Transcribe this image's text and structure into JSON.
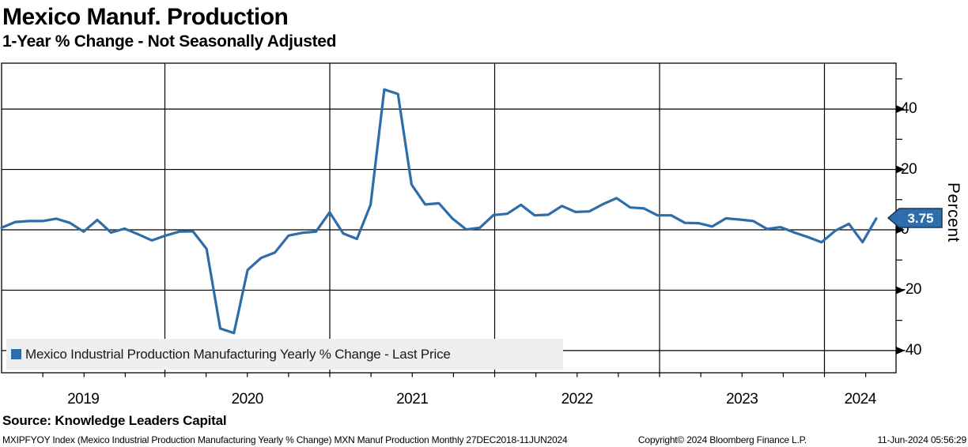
{
  "header": {
    "title": "Mexico Manuf. Production",
    "subtitle": "1-Year % Change - Not Seasonally Adjusted"
  },
  "legend": {
    "label": "Mexico Industrial Production Manufacturing Yearly % Change - Last Price"
  },
  "y_axis": {
    "label": "Percent",
    "tick_labels": [
      "40",
      "20",
      "0",
      "-20",
      "-40"
    ],
    "tick_values": [
      40,
      20,
      0,
      -20,
      -40
    ],
    "minor_tick_values": [
      50,
      30,
      10,
      -10,
      -30
    ],
    "last_price_label": "3.75",
    "last_price_value": 3.75
  },
  "x_axis": {
    "year_labels": [
      "2019",
      "2020",
      "2021",
      "2022",
      "2023",
      "2024"
    ]
  },
  "source_line": "Source: Knowledge Leaders Capital",
  "footer": {
    "left": "MXIPFYOY Index (Mexico Industrial Production Manufacturing Yearly % Change) MXN Manuf Production  Monthly 27DEC2018-11JUN2024",
    "copyright": "Copyright© 2024 Bloomberg Finance L.P.",
    "timestamp": "11-Jun-2024 05:56:29"
  },
  "colors": {
    "line": "#2E6DA9",
    "badge_fill": "#2E6DA9",
    "badge_border": "#16375C",
    "legend_bg": "#EFEFEF",
    "grid": "#000000"
  },
  "chart_data": {
    "type": "line",
    "title": "Mexico Manuf. Production",
    "subtitle": "1-Year % Change - Not Seasonally Adjusted",
    "ylabel": "Percent",
    "ylim": [
      -47,
      55
    ],
    "grid": true,
    "legend_position": "bottom-left",
    "frequency": "Monthly",
    "x_range": "27DEC2018-11JUN2024",
    "gridlines_y": [
      40,
      20,
      0,
      -20,
      -40
    ],
    "year_ticks": [
      "2019",
      "2020",
      "2021",
      "2022",
      "2023",
      "2024"
    ],
    "last_price": 3.75,
    "series_name": "Mexico Industrial Production Manufacturing Yearly % Change - Last Price",
    "months": [
      "Dec 2018",
      "Jan 2019",
      "Feb 2019",
      "Mar 2019",
      "Apr 2019",
      "May 2019",
      "Jun 2019",
      "Jul 2019",
      "Aug 2019",
      "Sep 2019",
      "Oct 2019",
      "Nov 2019",
      "Dec 2019",
      "Jan 2020",
      "Feb 2020",
      "Mar 2020",
      "Apr 2020",
      "May 2020",
      "Jun 2020",
      "Jul 2020",
      "Aug 2020",
      "Sep 2020",
      "Oct 2020",
      "Nov 2020",
      "Dec 2020",
      "Jan 2021",
      "Feb 2021",
      "Mar 2021",
      "Apr 2021",
      "May 2021",
      "Jun 2021",
      "Jul 2021",
      "Aug 2021",
      "Sep 2021",
      "Oct 2021",
      "Nov 2021",
      "Dec 2021",
      "Jan 2022",
      "Feb 2022",
      "Mar 2022",
      "Apr 2022",
      "May 2022",
      "Jun 2022",
      "Jul 2022",
      "Aug 2022",
      "Sep 2022",
      "Oct 2022",
      "Nov 2022",
      "Dec 2022",
      "Jan 2023",
      "Feb 2023",
      "Mar 2023",
      "Apr 2023",
      "May 2023",
      "Jun 2023",
      "Jul 2023",
      "Aug 2023",
      "Sep 2023",
      "Oct 2023",
      "Nov 2023",
      "Dec 2023",
      "Jan 2024",
      "Feb 2024",
      "Mar 2024",
      "Apr 2024"
    ],
    "values": [
      0.7,
      2.6,
      2.9,
      2.9,
      3.7,
      2.3,
      -0.6,
      3.3,
      -0.9,
      0.4,
      -1.5,
      -3.5,
      -1.9,
      -0.6,
      -0.5,
      -6.3,
      -32.7,
      -34.2,
      -13.3,
      -9.3,
      -7.5,
      -1.9,
      -1.0,
      -0.6,
      5.8,
      -1.2,
      -3.0,
      8.3,
      46.5,
      45.0,
      15.0,
      8.4,
      8.8,
      3.7,
      0.1,
      0.7,
      4.9,
      5.3,
      8.3,
      4.8,
      5.0,
      7.9,
      5.9,
      6.1,
      8.5,
      10.5,
      7.4,
      7.1,
      4.8,
      4.8,
      2.3,
      2.2,
      1.1,
      3.8,
      3.4,
      2.9,
      0.3,
      0.9,
      -0.9,
      -2.4,
      -4.1,
      -0.3,
      2.0,
      -4.1,
      3.75
    ]
  }
}
